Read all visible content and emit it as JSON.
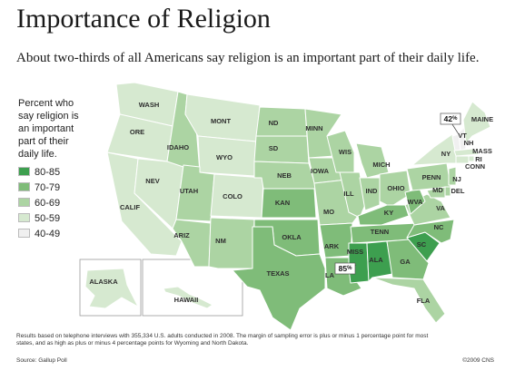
{
  "title": "Importance of Religion",
  "subtitle": "About two-thirds of all Americans say religion is an important part of their daily life.",
  "legend": {
    "title": "Percent who say religion is an important part of their daily life.",
    "items": [
      {
        "label": "80-85",
        "color": "#3d9f4f"
      },
      {
        "label": "70-79",
        "color": "#7fbc79"
      },
      {
        "label": "60-69",
        "color": "#acd4a3"
      },
      {
        "label": "50-59",
        "color": "#d6e9d0"
      },
      {
        "label": "40-49",
        "color": "#f0f0f0"
      }
    ]
  },
  "callouts": {
    "high": {
      "value": "85",
      "unit": "%"
    },
    "low": {
      "value": "42",
      "unit": "%"
    }
  },
  "states": [
    {
      "label": "WASH",
      "class": "50-59"
    },
    {
      "label": "ORE",
      "class": "50-59"
    },
    {
      "label": "CALIF",
      "class": "50-59"
    },
    {
      "label": "NEV",
      "class": "50-59"
    },
    {
      "label": "IDAHO",
      "class": "60-69"
    },
    {
      "label": "MONT",
      "class": "50-59"
    },
    {
      "label": "WYO",
      "class": "50-59"
    },
    {
      "label": "UTAH",
      "class": "60-69"
    },
    {
      "label": "COLO",
      "class": "50-59"
    },
    {
      "label": "ARIZ",
      "class": "60-69"
    },
    {
      "label": "NM",
      "class": "60-69"
    },
    {
      "label": "ND",
      "class": "60-69"
    },
    {
      "label": "SD",
      "class": "60-69"
    },
    {
      "label": "NEB",
      "class": "60-69"
    },
    {
      "label": "KAN",
      "class": "70-79"
    },
    {
      "label": "OKLA",
      "class": "70-79"
    },
    {
      "label": "TEXAS",
      "class": "70-79"
    },
    {
      "label": "MINN",
      "class": "60-69"
    },
    {
      "label": "IOWA",
      "class": "60-69"
    },
    {
      "label": "MO",
      "class": "60-69"
    },
    {
      "label": "ARK",
      "class": "70-79"
    },
    {
      "label": "LA",
      "class": "70-79"
    },
    {
      "label": "WIS",
      "class": "60-69"
    },
    {
      "label": "ILL",
      "class": "60-69"
    },
    {
      "label": "MICH",
      "class": "60-69"
    },
    {
      "label": "IND",
      "class": "60-69"
    },
    {
      "label": "OHIO",
      "class": "60-69"
    },
    {
      "label": "KY",
      "class": "70-79"
    },
    {
      "label": "TENN",
      "class": "70-79"
    },
    {
      "label": "MISS",
      "class": "80-85"
    },
    {
      "label": "ALA",
      "class": "80-85"
    },
    {
      "label": "GA",
      "class": "70-79"
    },
    {
      "label": "FLA",
      "class": "60-69"
    },
    {
      "label": "SC",
      "class": "80-85"
    },
    {
      "label": "NC",
      "class": "70-79"
    },
    {
      "label": "VA",
      "class": "60-69"
    },
    {
      "label": "WVA",
      "class": "70-79"
    },
    {
      "label": "PENN",
      "class": "60-69"
    },
    {
      "label": "NY",
      "class": "50-59"
    },
    {
      "label": "VT",
      "class": "40-49"
    },
    {
      "label": "NH",
      "class": "40-49"
    },
    {
      "label": "MAINE",
      "class": "50-59"
    },
    {
      "label": "MASS",
      "class": "50-59"
    },
    {
      "label": "RI",
      "class": "50-59"
    },
    {
      "label": "CONN",
      "class": "50-59"
    },
    {
      "label": "NJ",
      "class": "60-69"
    },
    {
      "label": "DEL",
      "class": "60-69"
    },
    {
      "label": "MD",
      "class": "60-69"
    },
    {
      "label": "ALASKA",
      "class": "50-59"
    },
    {
      "label": "HAWAII",
      "class": "50-59"
    }
  ],
  "footnote": "Results based on telephone interviews with 355,334 U.S. adults conducted in 2008. The margin of sampling error is plus or minus 1 percentage point for most states, and as high as plus or minus 4 percentage points for Wyoming and North Dakota.",
  "source": "Source: Gallup Poll",
  "copyright": "©2009 CNS"
}
